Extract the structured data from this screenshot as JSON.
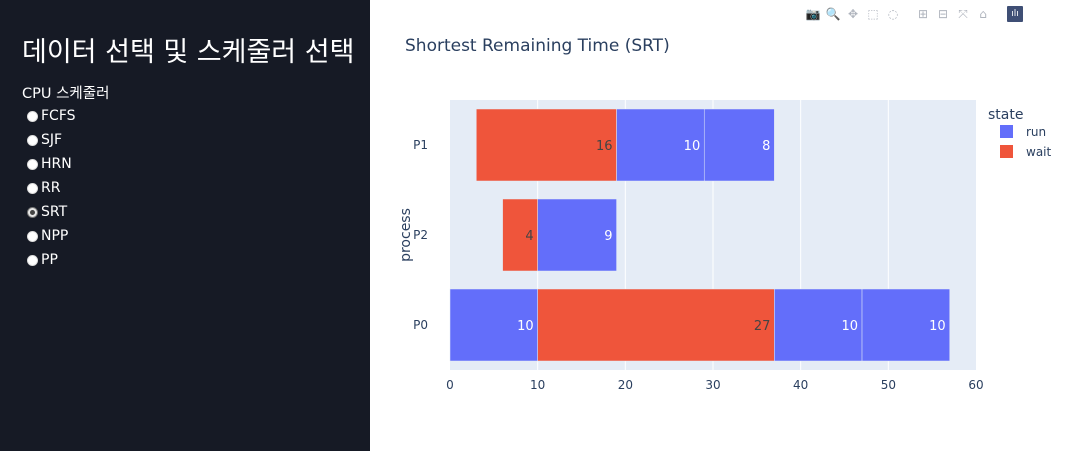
{
  "sidebar": {
    "title": "데이터 선택 및 스케줄러 선택",
    "label": "CPU 스케줄러",
    "options": [
      {
        "label": "FCFS",
        "checked": false
      },
      {
        "label": "SJF",
        "checked": false
      },
      {
        "label": "HRN",
        "checked": false
      },
      {
        "label": "RR",
        "checked": false
      },
      {
        "label": "SRT",
        "checked": true
      },
      {
        "label": "NPP",
        "checked": false
      },
      {
        "label": "PP",
        "checked": false
      }
    ]
  },
  "modebar": {
    "icons": [
      "camera-icon",
      "zoom-icon",
      "pan-icon",
      "box-select-icon",
      "lasso-select-icon",
      "zoom-in-icon",
      "zoom-out-icon",
      "autoscale-icon",
      "reset-axes-icon",
      "plotly-logo-icon"
    ]
  },
  "colors": {
    "run": "#636efa",
    "wait": "#ef553b",
    "plot_bg": "#e5ecf6"
  },
  "chart_data": {
    "type": "bar",
    "orientation": "horizontal",
    "stacked": true,
    "title": "Shortest Remaining Time (SRT)",
    "ylabel": "process",
    "xlabel": "",
    "xlim": [
      0,
      60
    ],
    "xticks": [
      0,
      10,
      20,
      30,
      40,
      50,
      60
    ],
    "categories": [
      "P0",
      "P2",
      "P1"
    ],
    "legend": {
      "title": "state",
      "entries": [
        "run",
        "wait"
      ],
      "position": "top-right"
    },
    "segments": [
      {
        "process": "P0",
        "state": "run",
        "start": 0,
        "length": 10,
        "label": "10"
      },
      {
        "process": "P0",
        "state": "wait",
        "start": 10,
        "length": 27,
        "label": "27"
      },
      {
        "process": "P0",
        "state": "run",
        "start": 37,
        "length": 10,
        "label": "10"
      },
      {
        "process": "P0",
        "state": "run",
        "start": 47,
        "length": 10,
        "label": "10"
      },
      {
        "process": "P2",
        "state": "wait",
        "start": 6,
        "length": 4,
        "label": "4"
      },
      {
        "process": "P2",
        "state": "run",
        "start": 10,
        "length": 9,
        "label": "9"
      },
      {
        "process": "P1",
        "state": "wait",
        "start": 3,
        "length": 16,
        "label": "16"
      },
      {
        "process": "P1",
        "state": "run",
        "start": 19,
        "length": 10,
        "label": "10"
      },
      {
        "process": "P1",
        "state": "run",
        "start": 29,
        "length": 8,
        "label": "8"
      }
    ]
  }
}
